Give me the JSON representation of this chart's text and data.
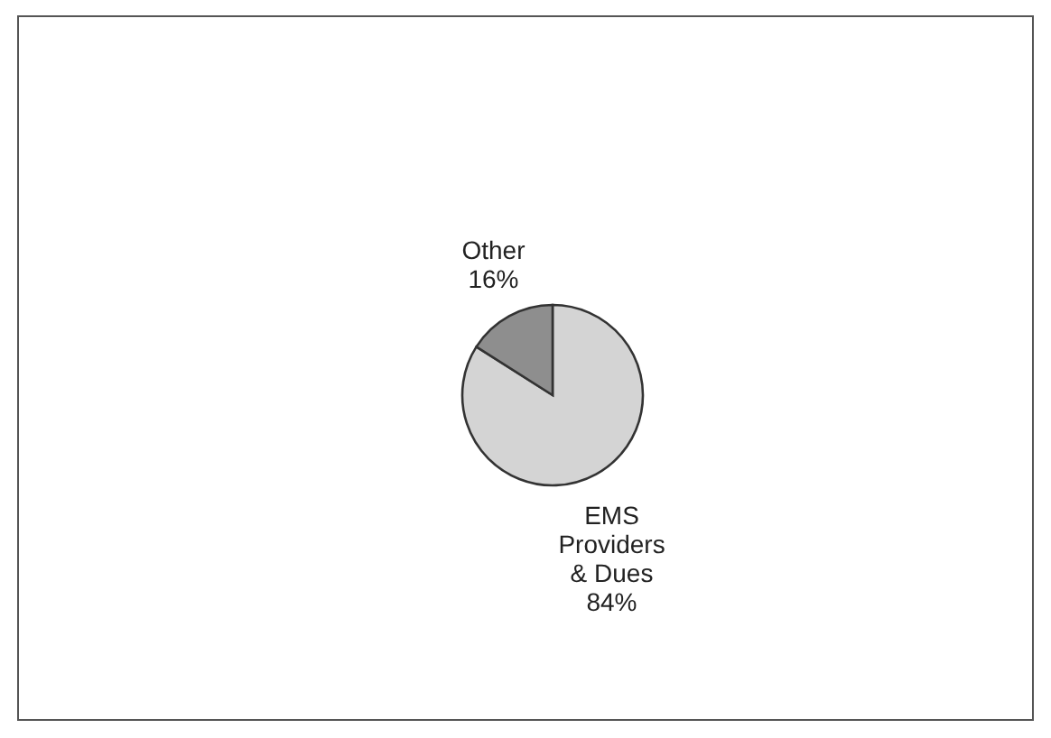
{
  "chart_data": {
    "type": "pie",
    "categories": [
      "EMS Providers & Dues",
      "Other"
    ],
    "values": [
      84,
      16
    ],
    "colors": [
      "#d4d4d4",
      "#8e8e8e"
    ],
    "value_labels": [
      "84%",
      "16%"
    ]
  }
}
